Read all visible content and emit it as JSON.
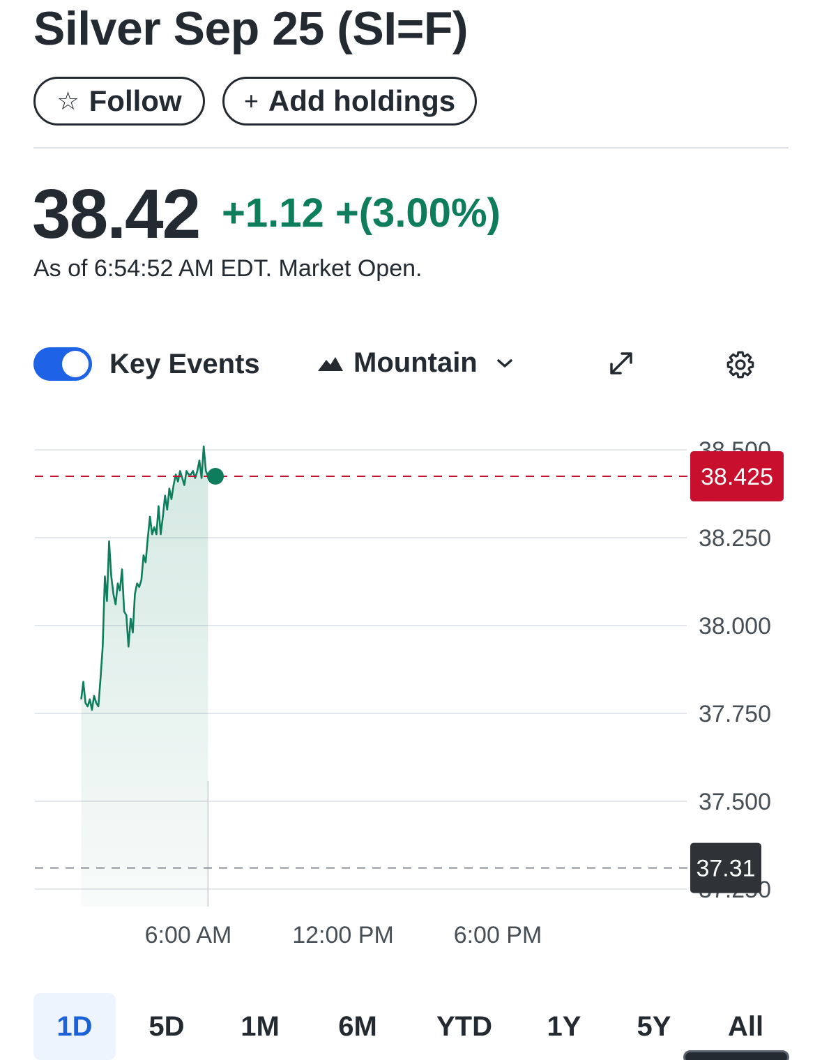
{
  "header": {
    "title": "Silver Sep 25 (SI=F)",
    "follow_icon": "☆",
    "follow_label": "Follow",
    "add_icon": "+",
    "add_label": "Add holdings"
  },
  "quote": {
    "price": "38.42",
    "change": "+1.12 +(3.00%)",
    "as_of": "As of 6:54:52 AM EDT. Market Open."
  },
  "controls": {
    "key_events_label": "Key Events",
    "key_events_on": true,
    "chart_type_label": "Mountain",
    "icons": [
      "mountain-icon",
      "chevron-down-icon",
      "expand-icon",
      "gear-icon"
    ]
  },
  "colors": {
    "accent": "#1e62e5",
    "up": "#0d7d5c",
    "price_tag": "#c8102e",
    "prev_close_tag": "#2f3337"
  },
  "chart_data": {
    "type": "area",
    "series": [
      {
        "x": [
          "2:00",
          "2:05",
          "2:10",
          "2:15",
          "2:20",
          "2:25",
          "2:30",
          "2:35",
          "2:40",
          "2:45",
          "2:50",
          "2:55",
          "3:00",
          "3:05",
          "3:10",
          "3:15",
          "3:20",
          "3:25",
          "3:30",
          "3:35",
          "3:40",
          "3:45",
          "3:50",
          "3:55",
          "4:00",
          "4:05",
          "4:10",
          "4:15",
          "4:20",
          "4:25",
          "4:30",
          "4:35",
          "4:40",
          "4:45",
          "4:50",
          "4:55",
          "5:00",
          "5:05",
          "5:10",
          "5:15",
          "5:20",
          "5:25",
          "5:30",
          "5:35",
          "5:40",
          "5:45",
          "5:50",
          "5:55",
          "6:00",
          "6:05",
          "6:10",
          "6:15",
          "6:20",
          "6:25",
          "6:30",
          "6:35",
          "6:40",
          "6:45",
          "6:50",
          "6:55"
        ],
        "values": [
          37.79,
          37.84,
          37.78,
          37.77,
          37.79,
          37.76,
          37.8,
          37.78,
          37.77,
          37.85,
          37.94,
          38.14,
          38.07,
          38.24,
          38.14,
          38.09,
          38.06,
          38.12,
          38.1,
          38.16,
          38.04,
          38.03,
          37.94,
          38.02,
          37.98,
          38.09,
          38.12,
          38.11,
          38.13,
          38.2,
          38.18,
          38.25,
          38.31,
          38.26,
          38.28,
          38.26,
          38.34,
          38.26,
          38.31,
          38.37,
          38.33,
          38.39,
          38.36,
          38.4,
          38.43,
          38.41,
          38.44,
          38.42,
          38.4,
          38.44,
          38.43,
          38.43,
          38.44,
          38.42,
          38.44,
          38.47,
          38.42,
          38.51,
          38.44,
          38.425
        ]
      }
    ],
    "y_ticks": [
      "38.500",
      "38.250",
      "38.000",
      "37.750",
      "37.500",
      "37.250"
    ],
    "ylim": [
      37.2,
      38.55
    ],
    "x_ticks": [
      "6:00 AM",
      "12:00 PM",
      "6:00 PM"
    ],
    "current_value": 38.425,
    "current_label": "38.425",
    "prev_close_value": 37.31,
    "prev_close_label": "37.31",
    "grid": true
  },
  "ranges": {
    "items": [
      "1D",
      "5D",
      "1M",
      "6M",
      "YTD",
      "1Y",
      "5Y",
      "All"
    ],
    "active": "1D"
  }
}
